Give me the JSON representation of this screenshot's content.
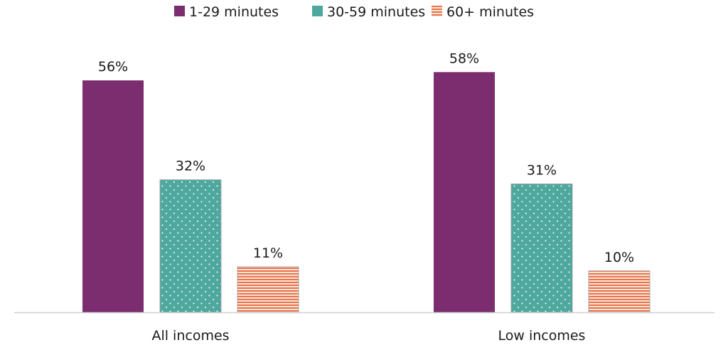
{
  "chart_data": {
    "type": "bar",
    "title": "",
    "xlabel": "",
    "ylabel": "",
    "ylim": [
      0,
      75
    ],
    "grid": false,
    "legend_position": "top-center",
    "categories": [
      "All incomes",
      "Low incomes"
    ],
    "series": [
      {
        "name": "1-29 minutes",
        "values": [
          56,
          58
        ],
        "labels": [
          "56%",
          "58%"
        ],
        "color": "#7b2d6f",
        "pattern": "solid"
      },
      {
        "name": "30-59 minutes",
        "values": [
          32,
          31
        ],
        "labels": [
          "32%",
          "31%"
        ],
        "color": "#4ea89e",
        "pattern": "dots"
      },
      {
        "name": "60+ minutes",
        "values": [
          11,
          10
        ],
        "labels": [
          "11%",
          "10%"
        ],
        "color": "#e8744a",
        "pattern": "horizontal-stripes"
      }
    ]
  }
}
